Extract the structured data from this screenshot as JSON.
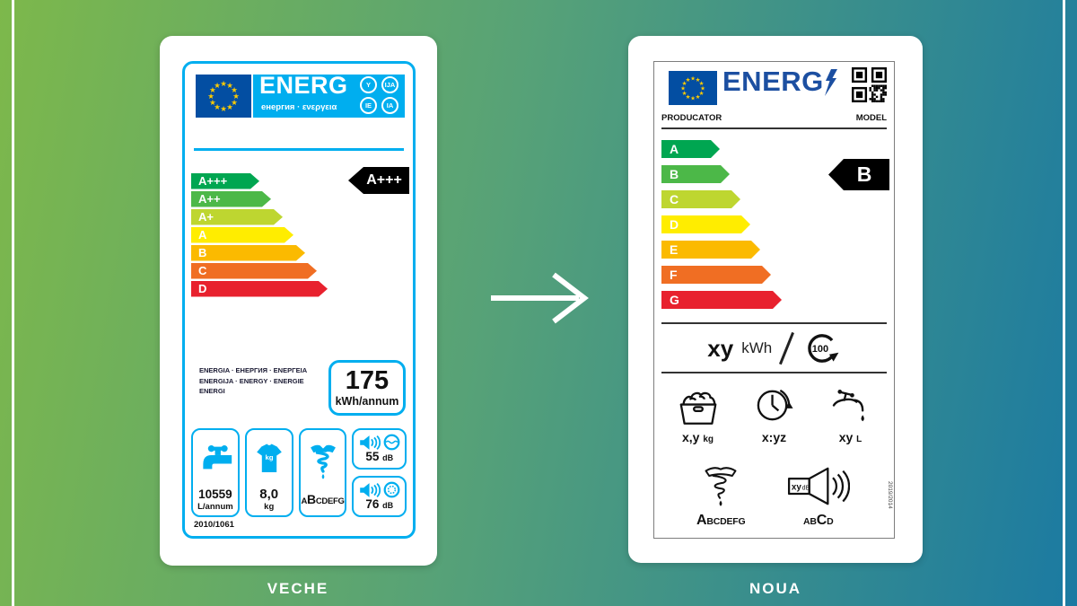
{
  "page": {
    "caption_old": "VECHE",
    "caption_new": "NOUA"
  },
  "colors": {
    "old_accent": "#00aeef",
    "eu_flag_blue": "#034ea2",
    "new_logo_blue": "#1c4fa1",
    "grade_colors": [
      "#00a651",
      "#4cb848",
      "#bed630",
      "#ffed00",
      "#fbba00",
      "#f06e23",
      "#e8212e"
    ]
  },
  "old_label": {
    "logo": {
      "title": "ENERG",
      "subtitle": "енергия · ενεργεια",
      "suffix_circles": [
        "Y",
        "IJA",
        "IE",
        "IA"
      ]
    },
    "scale": [
      {
        "grade": "A+++",
        "color": "#00a651",
        "width": 76
      },
      {
        "grade": "A++",
        "color": "#4cb848",
        "width": 89
      },
      {
        "grade": "A+",
        "color": "#bed630",
        "width": 102
      },
      {
        "grade": "A",
        "color": "#ffed00",
        "width": 114
      },
      {
        "grade": "B",
        "color": "#fbba00",
        "width": 127
      },
      {
        "grade": "C",
        "color": "#f06e23",
        "width": 140
      },
      {
        "grade": "D",
        "color": "#e8212e",
        "width": 152
      }
    ],
    "rating": "A+++",
    "energy_words_line1": "ENERGIA · ЕНЕРГИЯ · ΕΝΕΡΓΕΙΑ",
    "energy_words_line2": "ENERGIJA · ENERGY · ENERGIE",
    "energy_words_line3": "ENERGI",
    "consumption_value": "175",
    "consumption_unit": "kWh/annum",
    "water_value": "10559",
    "water_unit": "L/annum",
    "capacity_value": "8,0",
    "capacity_unit": "kg",
    "capacity_icon_text": "kg",
    "spin_class_pre": "A",
    "spin_class_main": "B",
    "spin_class_post": "CDEFG",
    "noise_wash_value": "55",
    "noise_wash_unit": "dB",
    "noise_spin_value": "76",
    "noise_spin_unit": "dB",
    "regulation": "2010/1061"
  },
  "new_label": {
    "logo_title": "ENERG",
    "producer": "PRODUCATOR",
    "model": "MODEL",
    "scale": [
      {
        "grade": "A",
        "color": "#00a651",
        "width": 65
      },
      {
        "grade": "B",
        "color": "#4cb848",
        "width": 76
      },
      {
        "grade": "C",
        "color": "#bed630",
        "width": 88
      },
      {
        "grade": "D",
        "color": "#ffed00",
        "width": 99
      },
      {
        "grade": "E",
        "color": "#fbba00",
        "width": 110
      },
      {
        "grade": "F",
        "color": "#f06e23",
        "width": 122
      },
      {
        "grade": "G",
        "color": "#e8212e",
        "width": 134
      }
    ],
    "rating": "B",
    "energy_value": "xy",
    "energy_unit": "kWh",
    "cycles": "100",
    "capacity_value": "x,y",
    "capacity_unit": "kg",
    "duration_value": "x:yz",
    "water_value": "xy",
    "water_unit": "L",
    "spin_class_main": "A",
    "spin_class_post": "BCDEFG",
    "noise_db_value": "xy",
    "noise_db_unit": "dB",
    "noise_class_pre": "AB",
    "noise_class_main": "C",
    "noise_class_post": "D",
    "regulation": "2019/2014"
  }
}
